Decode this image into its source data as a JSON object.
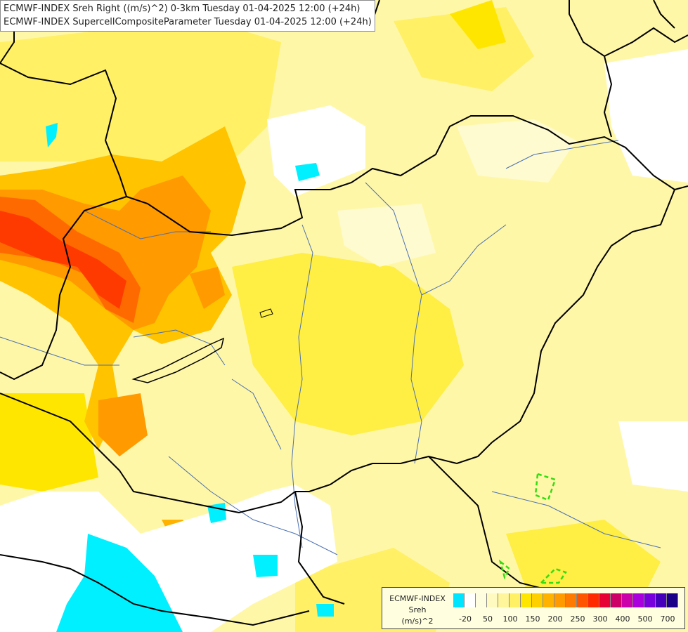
{
  "header": {
    "line1": "ECMWF-INDEX Sreh Right ((m/s)^2) 0-3km Tuesday 01-04-2025 12:00 (+24h)",
    "line2": "ECMWF-INDEX SupercellCompositeParameter Tuesday 01-04-2025 12:00 (+24h)"
  },
  "legend": {
    "line1": "ECMWF-INDEX",
    "line2": "Sreh",
    "line3": "(m/s)^2",
    "colors": [
      "#00e5ff",
      "#ffffff",
      "#fffde0",
      "#fffac0",
      "#fff59a",
      "#fff066",
      "#ffe600",
      "#ffd000",
      "#ffb300",
      "#ff9a00",
      "#ff7a00",
      "#ff5500",
      "#ff2a00",
      "#e60033",
      "#cc0066",
      "#cc00aa",
      "#aa00dd",
      "#7700dd",
      "#4400bb",
      "#1a0088"
    ],
    "ticks": [
      "-20",
      "50",
      "100",
      "150",
      "200",
      "250",
      "300",
      "400",
      "500",
      "700"
    ]
  },
  "colors": {
    "border": "#000000",
    "river": "#4a6fb0",
    "scp_contour": "#33dd11"
  }
}
